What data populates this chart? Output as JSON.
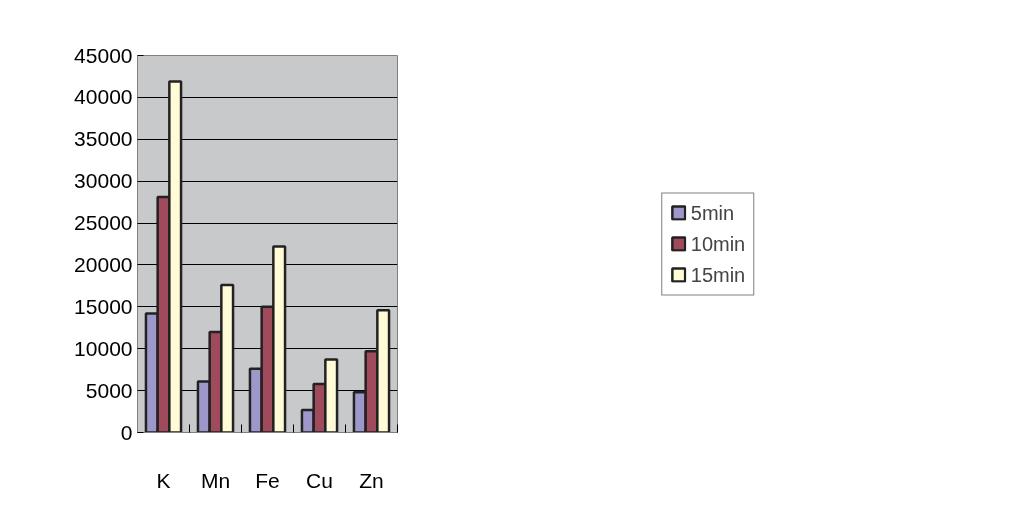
{
  "chart_data": {
    "type": "bar",
    "categories": [
      "K",
      "Mn",
      "Fe",
      "Cu",
      "Zn"
    ],
    "series": [
      {
        "name": "5min",
        "color": "#9d98c9",
        "values": [
          14200,
          6100,
          7600,
          2700,
          4800
        ]
      },
      {
        "name": "10min",
        "color": "#a04b5c",
        "values": [
          28100,
          12000,
          15000,
          5800,
          9700
        ]
      },
      {
        "name": "15min",
        "color": "#fffbd6",
        "values": [
          41900,
          17600,
          22200,
          8700,
          14600
        ]
      }
    ],
    "ylim": [
      0,
      45000
    ],
    "yticks": [
      0,
      5000,
      10000,
      15000,
      20000,
      25000,
      30000,
      35000,
      40000,
      45000
    ],
    "grid": "y",
    "legend": "right"
  }
}
